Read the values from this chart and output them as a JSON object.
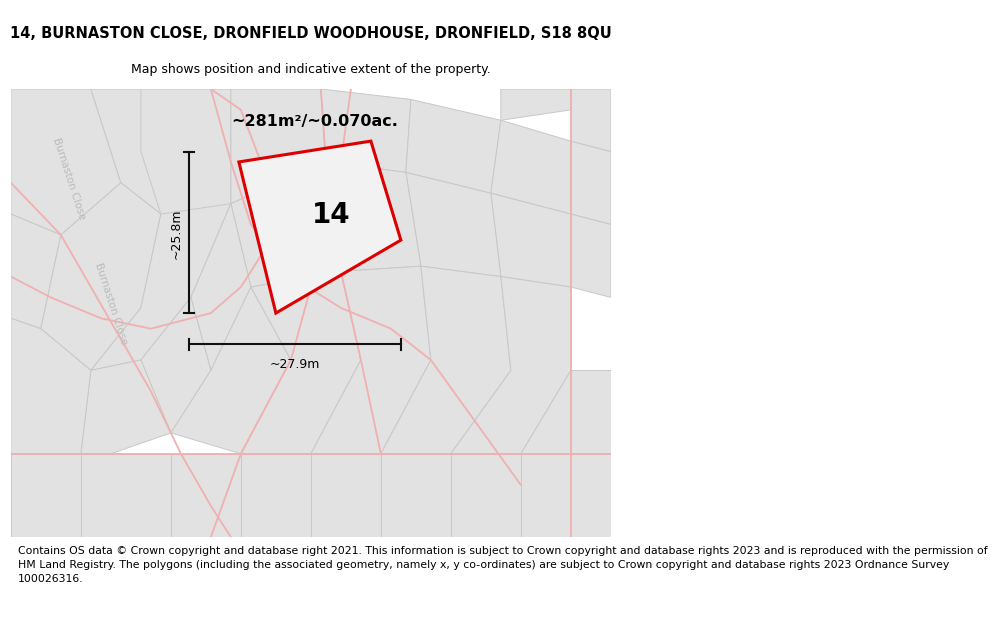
{
  "title": "14, BURNASTON CLOSE, DRONFIELD WOODHOUSE, DRONFIELD, S18 8QU",
  "subtitle": "Map shows position and indicative extent of the property.",
  "footer_lines": [
    "Contains OS data © Crown copyright and database right 2021. This information is subject to Crown copyright and database rights 2023 and is reproduced with the permission of",
    "HM Land Registry. The polygons (including the associated geometry, namely x, y co-ordinates) are subject to Crown copyright and database rights 2023 Ordnance Survey",
    "100026316."
  ],
  "title_fontsize": 10.5,
  "subtitle_fontsize": 9,
  "footer_fontsize": 7.8,
  "map_bg": "#f2f2f2",
  "parcel_face": "#e2e2e2",
  "parcel_edge": "#c8c8c8",
  "road_color": "#f0b0b0",
  "highlight_color": "#dd0000",
  "highlight_fill": "#f2f2f2",
  "label_number": "14",
  "area_label": "~281m²/~0.070ac.",
  "width_label": "~27.9m",
  "height_label": "~25.8m",
  "road_label": "Burnaston Close",
  "dim_line_color": "#111111"
}
